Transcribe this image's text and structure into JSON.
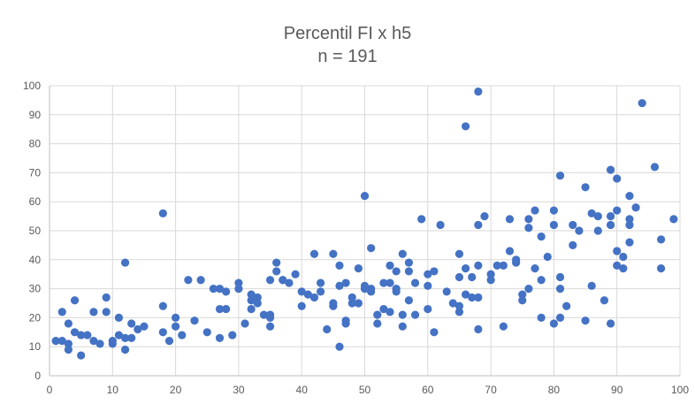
{
  "chart_data": {
    "type": "scatter",
    "title": "Percentil FI x h5",
    "subtitle": "n = 191",
    "xlabel": "",
    "ylabel": "",
    "xlim": [
      0,
      100
    ],
    "ylim": [
      0,
      100
    ],
    "xticks": [
      0,
      10,
      20,
      30,
      40,
      50,
      60,
      70,
      80,
      90,
      100
    ],
    "yticks": [
      0,
      10,
      20,
      30,
      40,
      50,
      60,
      70,
      80,
      90,
      100
    ],
    "grid": "horizontal and vertical major gridlines",
    "legend": "none",
    "marker_color": "#4472C4",
    "points": [
      [
        1,
        12
      ],
      [
        2,
        22
      ],
      [
        2,
        12
      ],
      [
        3,
        11
      ],
      [
        3,
        9
      ],
      [
        3,
        18
      ],
      [
        4,
        26
      ],
      [
        4,
        15
      ],
      [
        5,
        7
      ],
      [
        5,
        14
      ],
      [
        6,
        14
      ],
      [
        7,
        22
      ],
      [
        7,
        12
      ],
      [
        8,
        11
      ],
      [
        9,
        27
      ],
      [
        9,
        22
      ],
      [
        10,
        11
      ],
      [
        10,
        12
      ],
      [
        11,
        20
      ],
      [
        11,
        14
      ],
      [
        12,
        39
      ],
      [
        12,
        13
      ],
      [
        12,
        9
      ],
      [
        13,
        18
      ],
      [
        13,
        13
      ],
      [
        14,
        16
      ],
      [
        15,
        17
      ],
      [
        18,
        24
      ],
      [
        18,
        56
      ],
      [
        18,
        15
      ],
      [
        19,
        12
      ],
      [
        20,
        20
      ],
      [
        20,
        17
      ],
      [
        21,
        14
      ],
      [
        22,
        33
      ],
      [
        23,
        19
      ],
      [
        24,
        33
      ],
      [
        25,
        15
      ],
      [
        26,
        30
      ],
      [
        27,
        30
      ],
      [
        27,
        23
      ],
      [
        27,
        13
      ],
      [
        28,
        29
      ],
      [
        28,
        23
      ],
      [
        29,
        14
      ],
      [
        30,
        32
      ],
      [
        30,
        30
      ],
      [
        31,
        18
      ],
      [
        32,
        28
      ],
      [
        32,
        23
      ],
      [
        32,
        26
      ],
      [
        33,
        27
      ],
      [
        33,
        25
      ],
      [
        34,
        21
      ],
      [
        35,
        21
      ],
      [
        35,
        20
      ],
      [
        35,
        33
      ],
      [
        35,
        17
      ],
      [
        36,
        39
      ],
      [
        36,
        36
      ],
      [
        37,
        33
      ],
      [
        37,
        33
      ],
      [
        38,
        32
      ],
      [
        39,
        35
      ],
      [
        40,
        24
      ],
      [
        40,
        29
      ],
      [
        41,
        28
      ],
      [
        42,
        27
      ],
      [
        42,
        42
      ],
      [
        43,
        32
      ],
      [
        43,
        29
      ],
      [
        44,
        16
      ],
      [
        45,
        25
      ],
      [
        45,
        24
      ],
      [
        45,
        42
      ],
      [
        46,
        10
      ],
      [
        46,
        31
      ],
      [
        46,
        38
      ],
      [
        47,
        32
      ],
      [
        47,
        19
      ],
      [
        47,
        18
      ],
      [
        48,
        27
      ],
      [
        48,
        25
      ],
      [
        49,
        37
      ],
      [
        49,
        25
      ],
      [
        50,
        62
      ],
      [
        50,
        30
      ],
      [
        50,
        31
      ],
      [
        51,
        30
      ],
      [
        51,
        44
      ],
      [
        51,
        29
      ],
      [
        52,
        18
      ],
      [
        52,
        21
      ],
      [
        53,
        32
      ],
      [
        53,
        23
      ],
      [
        54,
        38
      ],
      [
        54,
        32
      ],
      [
        54,
        22
      ],
      [
        55,
        30
      ],
      [
        55,
        36
      ],
      [
        55,
        29
      ],
      [
        56,
        42
      ],
      [
        56,
        17
      ],
      [
        56,
        21
      ],
      [
        57,
        36
      ],
      [
        57,
        26
      ],
      [
        57,
        39
      ],
      [
        58,
        21
      ],
      [
        58,
        32
      ],
      [
        59,
        54
      ],
      [
        60,
        23
      ],
      [
        60,
        31
      ],
      [
        60,
        35
      ],
      [
        61,
        15
      ],
      [
        61,
        36
      ],
      [
        62,
        52
      ],
      [
        63,
        29
      ],
      [
        64,
        25
      ],
      [
        65,
        42
      ],
      [
        65,
        24
      ],
      [
        65,
        22
      ],
      [
        65,
        34
      ],
      [
        66,
        37
      ],
      [
        66,
        28
      ],
      [
        66,
        86
      ],
      [
        67,
        34
      ],
      [
        67,
        27
      ],
      [
        68,
        98
      ],
      [
        68,
        52
      ],
      [
        68,
        16
      ],
      [
        68,
        27
      ],
      [
        68,
        38
      ],
      [
        69,
        55
      ],
      [
        70,
        33
      ],
      [
        70,
        35
      ],
      [
        71,
        38
      ],
      [
        72,
        38
      ],
      [
        72,
        17
      ],
      [
        73,
        43
      ],
      [
        73,
        54
      ],
      [
        74,
        40
      ],
      [
        74,
        39
      ],
      [
        75,
        26
      ],
      [
        75,
        28
      ],
      [
        76,
        51
      ],
      [
        76,
        54
      ],
      [
        76,
        30
      ],
      [
        77,
        57
      ],
      [
        77,
        37
      ],
      [
        78,
        48
      ],
      [
        78,
        20
      ],
      [
        78,
        33
      ],
      [
        79,
        41
      ],
      [
        80,
        18
      ],
      [
        80,
        52
      ],
      [
        80,
        57
      ],
      [
        81,
        34
      ],
      [
        81,
        30
      ],
      [
        81,
        69
      ],
      [
        81,
        20
      ],
      [
        82,
        24
      ],
      [
        83,
        45
      ],
      [
        83,
        52
      ],
      [
        84,
        50
      ],
      [
        85,
        19
      ],
      [
        85,
        65
      ],
      [
        86,
        56
      ],
      [
        86,
        31
      ],
      [
        87,
        55
      ],
      [
        87,
        50
      ],
      [
        88,
        26
      ],
      [
        89,
        18
      ],
      [
        89,
        71
      ],
      [
        89,
        55
      ],
      [
        89,
        52
      ],
      [
        90,
        57
      ],
      [
        90,
        68
      ],
      [
        90,
        43
      ],
      [
        90,
        38
      ],
      [
        91,
        41
      ],
      [
        91,
        37
      ],
      [
        92,
        62
      ],
      [
        92,
        52
      ],
      [
        92,
        46
      ],
      [
        92,
        54
      ],
      [
        93,
        58
      ],
      [
        94,
        94
      ],
      [
        96,
        72
      ],
      [
        97,
        47
      ],
      [
        97,
        37
      ],
      [
        99,
        54
      ]
    ]
  }
}
